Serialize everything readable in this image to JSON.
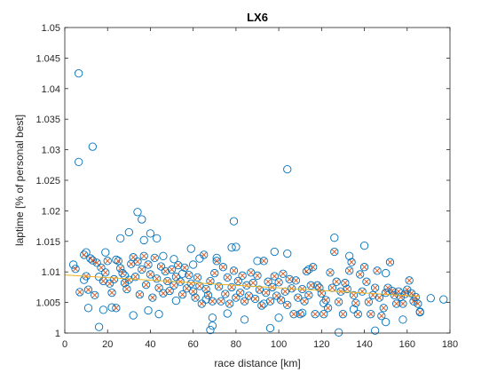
{
  "chart_data": {
    "type": "scatter",
    "title": "LX6",
    "xlabel": "race distance [km]",
    "ylabel": "laptime [% of personal best]",
    "xlim": [
      0,
      180
    ],
    "ylim": [
      1,
      1.05
    ],
    "xticks": [
      0,
      20,
      40,
      60,
      80,
      100,
      120,
      140,
      160,
      180
    ],
    "yticks": [
      1,
      1.005,
      1.01,
      1.015,
      1.02,
      1.025,
      1.03,
      1.035,
      1.04,
      1.045,
      1.05
    ],
    "xtick_labels": [
      "0",
      "20",
      "40",
      "60",
      "80",
      "100",
      "120",
      "140",
      "160",
      "180"
    ],
    "ytick_labels": [
      "1",
      "1.005",
      "1.01",
      "1.015",
      "1.02",
      "1.025",
      "1.03",
      "1.035",
      "1.04",
      "1.045",
      "1.05"
    ],
    "grid": false,
    "box": true,
    "colors": {
      "circle": "#0072BD",
      "cross": "#D95319",
      "fit": "#EDB120",
      "axis": "#262626"
    },
    "series": [
      {
        "marker": "circle",
        "points": [
          [
            6.5,
            1.0425
          ],
          [
            6.5,
            1.028
          ],
          [
            13,
            1.0305
          ],
          [
            104,
            1.0268
          ],
          [
            34,
            1.0198
          ],
          [
            36,
            1.0186
          ],
          [
            79,
            1.0183
          ],
          [
            30,
            1.0165
          ],
          [
            40,
            1.0163
          ],
          [
            43,
            1.0155
          ],
          [
            26,
            1.0155
          ],
          [
            37,
            1.0152
          ],
          [
            126,
            1.0156
          ],
          [
            78,
            1.014
          ],
          [
            80,
            1.0141
          ],
          [
            140,
            1.0143
          ],
          [
            59,
            1.0138
          ],
          [
            10,
            1.0132
          ],
          [
            19,
            1.0132
          ],
          [
            98,
            1.0133
          ],
          [
            104,
            1.013
          ],
          [
            133,
            1.0126
          ],
          [
            71,
            1.0123
          ],
          [
            51,
            1.0121
          ],
          [
            4,
            1.0112
          ],
          [
            9,
            1.0087
          ],
          [
            16,
            1.0092
          ],
          [
            28,
            1.0094
          ],
          [
            46,
            1.0126
          ],
          [
            63,
            1.0122
          ],
          [
            90,
            1.0118
          ],
          [
            114,
            1.0104
          ],
          [
            150,
            1.0098
          ],
          [
            11,
            1.0041
          ],
          [
            18,
            1.0038
          ],
          [
            22,
            1.0042
          ],
          [
            32,
            1.0029
          ],
          [
            39,
            1.0037
          ],
          [
            44,
            1.0031
          ],
          [
            52,
            1.0053
          ],
          [
            66,
            1.0055
          ],
          [
            69,
            1.0025
          ],
          [
            76,
            1.0032
          ],
          [
            84,
            1.0022
          ],
          [
            93,
            1.0048
          ],
          [
            100,
            1.0025
          ],
          [
            111,
            1.0033
          ],
          [
            121,
            1.0049
          ],
          [
            128,
            1.0001
          ],
          [
            135,
            1.0039
          ],
          [
            145,
            1.0004
          ],
          [
            150,
            1.0018
          ],
          [
            158,
            1.0022
          ],
          [
            68,
            1.0005
          ],
          [
            96,
            1.0008
          ],
          [
            16,
            1.001
          ],
          [
            69,
            1.0012
          ],
          [
            24,
            1.012
          ],
          [
            55,
            1.0097
          ],
          [
            60,
            1.0112
          ]
        ]
      },
      {
        "marker": "circle-x",
        "points": [
          [
            5,
            1.0105
          ],
          [
            7,
            1.0067
          ],
          [
            9,
            1.0128
          ],
          [
            10,
            1.0093
          ],
          [
            11,
            1.0071
          ],
          [
            12,
            1.0122
          ],
          [
            13,
            1.0119
          ],
          [
            14,
            1.0062
          ],
          [
            15,
            1.0115
          ],
          [
            17,
            1.0107
          ],
          [
            18,
            1.0085
          ],
          [
            19,
            1.0099
          ],
          [
            20,
            1.0118
          ],
          [
            21,
            1.0081
          ],
          [
            22,
            1.0066
          ],
          [
            23,
            1.0088
          ],
          [
            24,
            1.0041
          ],
          [
            25,
            1.0118
          ],
          [
            26,
            1.0106
          ],
          [
            27,
            1.0098
          ],
          [
            28,
            1.0082
          ],
          [
            29,
            1.0072
          ],
          [
            30,
            1.0087
          ],
          [
            31,
            1.0113
          ],
          [
            32,
            1.0124
          ],
          [
            33,
            1.0092
          ],
          [
            34,
            1.0117
          ],
          [
            35,
            1.0063
          ],
          [
            36,
            1.0104
          ],
          [
            37,
            1.0126
          ],
          [
            38,
            1.0079
          ],
          [
            39,
            1.0112
          ],
          [
            40,
            1.0096
          ],
          [
            41,
            1.0058
          ],
          [
            42,
            1.0123
          ],
          [
            43,
            1.0089
          ],
          [
            44,
            1.0074
          ],
          [
            45,
            1.0109
          ],
          [
            46,
            1.0065
          ],
          [
            47,
            1.0101
          ],
          [
            48,
            1.0085
          ],
          [
            49,
            1.0069
          ],
          [
            50,
            1.0104
          ],
          [
            51,
            1.0078
          ],
          [
            52,
            1.0092
          ],
          [
            53,
            1.0111
          ],
          [
            54,
            1.0084
          ],
          [
            55,
            1.0063
          ],
          [
            56,
            1.0107
          ],
          [
            57,
            1.0073
          ],
          [
            58,
            1.0095
          ],
          [
            59,
            1.0081
          ],
          [
            60,
            1.0068
          ],
          [
            61,
            1.0058
          ],
          [
            62,
            1.0091
          ],
          [
            63,
            1.0077
          ],
          [
            64,
            1.0048
          ],
          [
            65,
            1.0128
          ],
          [
            66,
            1.0072
          ],
          [
            67,
            1.0062
          ],
          [
            68,
            1.0085
          ],
          [
            69,
            1.0052
          ],
          [
            70,
            1.0098
          ],
          [
            71,
            1.0118
          ],
          [
            72,
            1.0076
          ],
          [
            73,
            1.0052
          ],
          [
            74,
            1.0108
          ],
          [
            75,
            1.0064
          ],
          [
            76,
            1.0091
          ],
          [
            77,
            1.0048
          ],
          [
            78,
            1.0075
          ],
          [
            79,
            1.0102
          ],
          [
            80,
            1.0058
          ],
          [
            81,
            1.0085
          ],
          [
            82,
            1.0066
          ],
          [
            83,
            1.0094
          ],
          [
            84,
            1.0052
          ],
          [
            85,
            1.0078
          ],
          [
            86,
            1.0061
          ],
          [
            87,
            1.0099
          ],
          [
            88,
            1.0082
          ],
          [
            89,
            1.0056
          ],
          [
            90,
            1.0094
          ],
          [
            91,
            1.0071
          ],
          [
            92,
            1.0045
          ],
          [
            93,
            1.0118
          ],
          [
            94,
            1.0066
          ],
          [
            95,
            1.0084
          ],
          [
            96,
            1.0052
          ],
          [
            97,
            1.0075
          ],
          [
            98,
            1.0093
          ],
          [
            99,
            1.0061
          ],
          [
            100,
            1.0083
          ],
          [
            101,
            1.0054
          ],
          [
            102,
            1.0097
          ],
          [
            103,
            1.0068
          ],
          [
            104,
            1.0046
          ],
          [
            105,
            1.0088
          ],
          [
            106,
            1.0073
          ],
          [
            107,
            1.0031
          ],
          [
            108,
            1.0086
          ],
          [
            109,
            1.0058
          ],
          [
            110,
            1.0031
          ],
          [
            111,
            1.0072
          ],
          [
            112,
            1.0052
          ],
          [
            113,
            1.0101
          ],
          [
            114,
            1.0062
          ],
          [
            115,
            1.0078
          ],
          [
            116,
            1.0108
          ],
          [
            117,
            1.0031
          ],
          [
            118,
            1.0078
          ],
          [
            119,
            1.0074
          ],
          [
            120,
            1.0065
          ],
          [
            121,
            1.0031
          ],
          [
            122,
            1.0054
          ],
          [
            123,
            1.0041
          ],
          [
            124,
            1.0099
          ],
          [
            125,
            1.0074
          ],
          [
            126,
            1.0133
          ],
          [
            127,
            1.0084
          ],
          [
            128,
            1.0051
          ],
          [
            129,
            1.0068
          ],
          [
            130,
            1.0031
          ],
          [
            131,
            1.0082
          ],
          [
            132,
            1.0072
          ],
          [
            133,
            1.0102
          ],
          [
            134,
            1.0116
          ],
          [
            135,
            1.0062
          ],
          [
            136,
            1.0049
          ],
          [
            137,
            1.0031
          ],
          [
            138,
            1.0096
          ],
          [
            139,
            1.0068
          ],
          [
            140,
            1.0108
          ],
          [
            141,
            1.0084
          ],
          [
            142,
            1.0051
          ],
          [
            143,
            1.0031
          ],
          [
            144,
            1.0062
          ],
          [
            145,
            1.0074
          ],
          [
            146,
            1.0102
          ],
          [
            147,
            1.0058
          ],
          [
            148,
            1.0028
          ],
          [
            149,
            1.0041
          ],
          [
            150,
            1.0066
          ],
          [
            151,
            1.0074
          ],
          [
            152,
            1.0116
          ],
          [
            153,
            1.0069
          ],
          [
            154,
            1.0062
          ],
          [
            155,
            1.0048
          ],
          [
            156,
            1.0068
          ],
          [
            157,
            1.0059
          ],
          [
            158,
            1.0048
          ],
          [
            159,
            1.0064
          ],
          [
            160,
            1.0071
          ],
          [
            161,
            1.0086
          ],
          [
            162,
            1.0065
          ],
          [
            163,
            1.0052
          ],
          [
            164,
            1.0059
          ],
          [
            165,
            1.0048
          ],
          [
            166,
            1.0034
          ]
        ]
      },
      {
        "marker": "line",
        "points": [
          [
            0,
            1.0095
          ],
          [
            166,
            1.006
          ]
        ]
      }
    ],
    "extra_circles": [
      [
        166,
        1.0035
      ],
      [
        171,
        1.0057
      ],
      [
        177,
        1.0055
      ]
    ]
  }
}
